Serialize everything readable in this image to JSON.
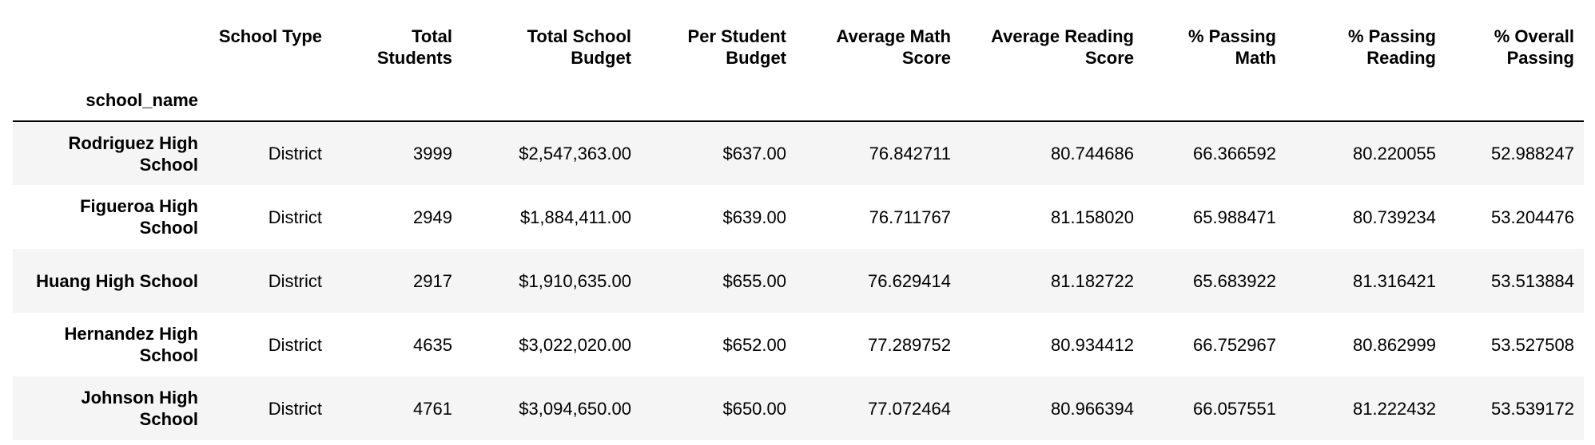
{
  "table": {
    "index_name": "school_name",
    "columns": [
      "School Type",
      "Total Students",
      "Total School Budget",
      "Per Student Budget",
      "Average Math Score",
      "Average Reading Score",
      "% Passing Math",
      "% Passing Reading",
      "% Overall Passing"
    ],
    "rows": [
      {
        "school_name": "Rodriguez High School",
        "cells": [
          "District",
          "3999",
          "$2,547,363.00",
          "$637.00",
          "76.842711",
          "80.744686",
          "66.366592",
          "80.220055",
          "52.988247"
        ]
      },
      {
        "school_name": "Figueroa High School",
        "cells": [
          "District",
          "2949",
          "$1,884,411.00",
          "$639.00",
          "76.711767",
          "81.158020",
          "65.988471",
          "80.739234",
          "53.204476"
        ]
      },
      {
        "school_name": "Huang High School",
        "cells": [
          "District",
          "2917",
          "$1,910,635.00",
          "$655.00",
          "76.629414",
          "81.182722",
          "65.683922",
          "81.316421",
          "53.513884"
        ]
      },
      {
        "school_name": "Hernandez High School",
        "cells": [
          "District",
          "4635",
          "$3,022,020.00",
          "$652.00",
          "77.289752",
          "80.934412",
          "66.752967",
          "80.862999",
          "53.527508"
        ]
      },
      {
        "school_name": "Johnson High School",
        "cells": [
          "District",
          "4761",
          "$3,094,650.00",
          "$650.00",
          "77.072464",
          "80.966394",
          "66.057551",
          "81.222432",
          "53.539172"
        ]
      }
    ]
  }
}
